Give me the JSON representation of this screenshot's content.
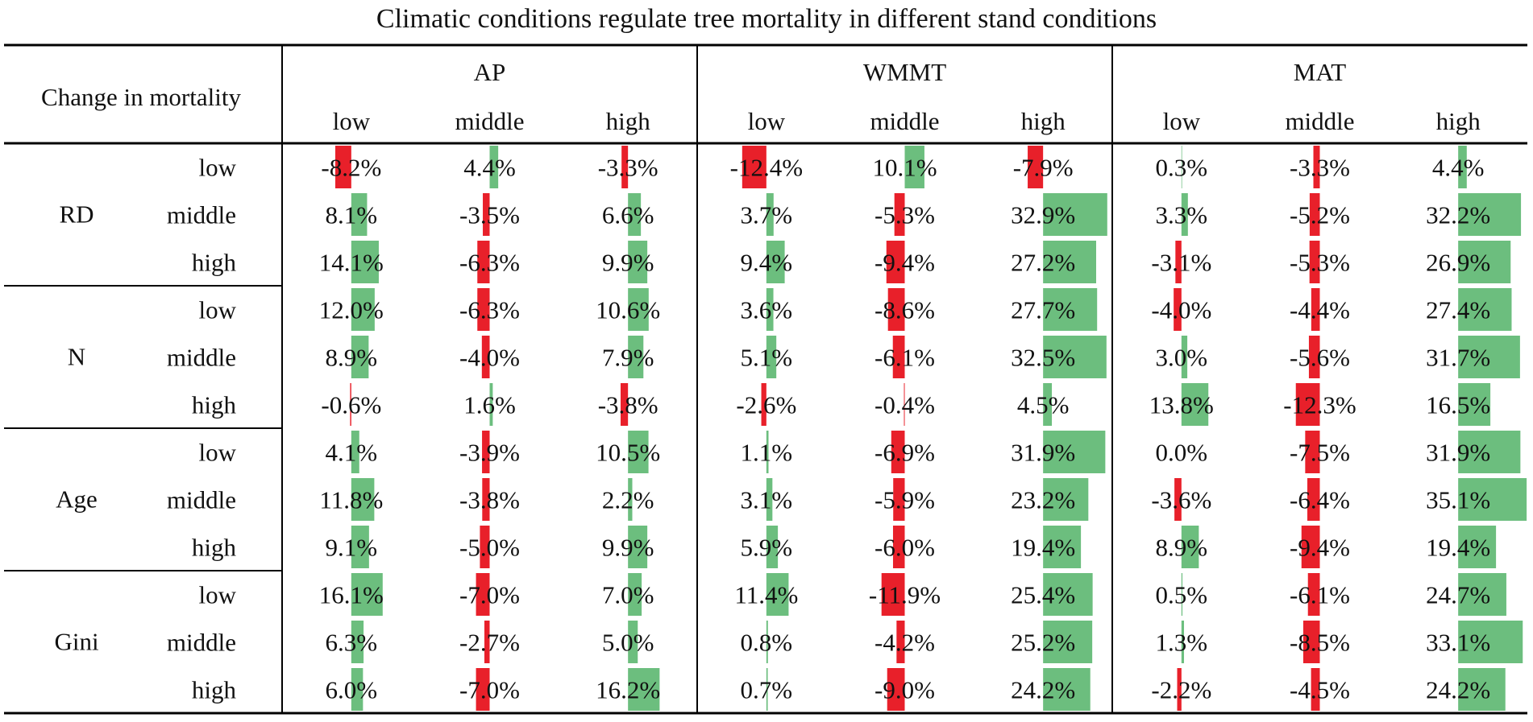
{
  "chart_data": {
    "type": "table",
    "title": "Climatic conditions regulate tree mortality in different stand conditions",
    "corner_label": "Change in mortality",
    "column_groups": [
      {
        "name": "AP",
        "levels": [
          "low",
          "middle",
          "high"
        ]
      },
      {
        "name": "WMMT",
        "levels": [
          "low",
          "middle",
          "high"
        ]
      },
      {
        "name": "MAT",
        "levels": [
          "low",
          "middle",
          "high"
        ]
      }
    ],
    "row_groups": [
      {
        "name": "RD",
        "levels": [
          "low",
          "middle",
          "high"
        ]
      },
      {
        "name": "N",
        "levels": [
          "low",
          "middle",
          "high"
        ]
      },
      {
        "name": "Age",
        "levels": [
          "low",
          "middle",
          "high"
        ]
      },
      {
        "name": "Gini",
        "levels": [
          "low",
          "middle",
          "high"
        ]
      }
    ],
    "values": [
      [
        -8.2,
        4.4,
        -3.3,
        -12.4,
        10.1,
        -7.9,
        0.3,
        -3.3,
        4.4
      ],
      [
        8.1,
        -3.5,
        6.6,
        3.7,
        -5.3,
        32.9,
        3.3,
        -5.2,
        32.2
      ],
      [
        14.1,
        -6.3,
        9.9,
        9.4,
        -9.4,
        27.2,
        -3.1,
        -5.3,
        26.9
      ],
      [
        12.0,
        -6.3,
        10.6,
        3.6,
        -8.6,
        27.7,
        -4.0,
        -4.4,
        27.4
      ],
      [
        8.9,
        -4.0,
        7.9,
        5.1,
        -6.1,
        32.5,
        3.0,
        -5.6,
        31.7
      ],
      [
        -0.6,
        1.6,
        -3.8,
        -2.6,
        -0.4,
        4.5,
        13.8,
        -12.3,
        16.5
      ],
      [
        4.1,
        -3.9,
        10.5,
        1.1,
        -6.9,
        31.9,
        0.0,
        -7.5,
        31.9
      ],
      [
        11.8,
        -3.8,
        2.2,
        3.1,
        -5.9,
        23.2,
        -3.6,
        -6.4,
        35.1
      ],
      [
        9.1,
        -5.0,
        9.9,
        5.9,
        -6.0,
        19.4,
        8.9,
        -9.4,
        19.4
      ],
      [
        16.1,
        -7.0,
        7.0,
        11.4,
        -11.9,
        25.4,
        0.5,
        -6.1,
        24.7
      ],
      [
        6.3,
        -2.7,
        5.0,
        0.8,
        -4.2,
        25.2,
        1.3,
        -8.5,
        33.1
      ],
      [
        6.0,
        -7.0,
        16.2,
        0.7,
        -9.0,
        24.2,
        -2.2,
        -4.5,
        24.2
      ]
    ],
    "labels": [
      [
        "-8.2%",
        "4.4%",
        "-3.3%",
        "-12.4%",
        "10.1%",
        "-7.9%",
        "0.3%",
        "-3.3%",
        "4.4%"
      ],
      [
        "8.1%",
        "-3.5%",
        "6.6%",
        "3.7%",
        "-5.3%",
        "32.9%",
        "3.3%",
        "-5.2%",
        "32.2%"
      ],
      [
        "14.1%",
        "-6.3%",
        "9.9%",
        "9.4%",
        "-9.4%",
        "27.2%",
        "-3.1%",
        "-5.3%",
        "26.9%"
      ],
      [
        "12.0%",
        "-6.3%",
        "10.6%",
        "3.6%",
        "-8.6%",
        "27.7%",
        "-4.0%",
        "-4.4%",
        "27.4%"
      ],
      [
        "8.9%",
        "-4.0%",
        "7.9%",
        "5.1%",
        "-6.1%",
        "32.5%",
        "3.0%",
        "-5.6%",
        "31.7%"
      ],
      [
        "-0.6%",
        "1.6%",
        "-3.8%",
        "-2.6%",
        "-0.4%",
        "4.5%",
        "13.8%",
        "-12.3%",
        "16.5%"
      ],
      [
        "4.1%",
        "-3.9%",
        "10.5%",
        "1.1%",
        "-6.9%",
        "31.9%",
        "0.0%",
        "-7.5%",
        "31.9%"
      ],
      [
        "11.8%",
        "-3.8%",
        "2.2%",
        "3.1%",
        "-5.9%",
        "23.2%",
        "-3.6%",
        "-6.4%",
        "35.1%"
      ],
      [
        "9.1%",
        "-5.0%",
        "9.9%",
        "5.9%",
        "-6.0%",
        "19.4%",
        "8.9%",
        "-9.4%",
        "19.4%"
      ],
      [
        "16.1%",
        "-7.0%",
        "7.0%",
        "11.4%",
        "-11.9%",
        "25.4%",
        "0.5%",
        "-6.1%",
        "24.7%"
      ],
      [
        "6.3%",
        "-2.7%",
        "5.0%",
        "0.8%",
        "-4.2%",
        "25.2%",
        "1.3%",
        "-8.5%",
        "33.1%"
      ],
      [
        "6.0%",
        "-7.0%",
        "16.2%",
        "0.7%",
        "-9.0%",
        "24.2%",
        "-2.2%",
        "-4.5%",
        "24.2%"
      ]
    ],
    "colors": {
      "positive": "#6cbe7e",
      "negative": "#e8202a"
    }
  }
}
